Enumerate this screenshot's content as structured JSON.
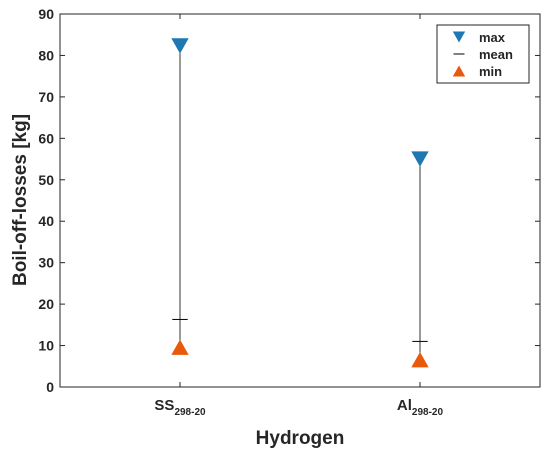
{
  "chart_data": {
    "type": "scatter",
    "title": "",
    "xlabel": "Hydrogen",
    "ylabel": "Boil-off-losses [kg]",
    "ylim": [
      0,
      90
    ],
    "yticks": [
      0,
      10,
      20,
      30,
      40,
      50,
      60,
      70,
      80,
      90
    ],
    "grid": false,
    "legend_position": "top-right",
    "categories": [
      {
        "base": "SS",
        "sub": "298-20"
      },
      {
        "base": "Al",
        "sub": "298-20"
      }
    ],
    "series": [
      {
        "name": "max",
        "marker": "triangle-down",
        "color": "#1f77b4",
        "values": [
          82.3,
          55.0
        ]
      },
      {
        "name": "mean",
        "marker": "hline",
        "color": "#000000",
        "values": [
          16.3,
          11.0
        ]
      },
      {
        "name": "min",
        "marker": "triangle-up",
        "color": "#e8590c",
        "values": [
          9.6,
          6.6
        ]
      }
    ]
  }
}
